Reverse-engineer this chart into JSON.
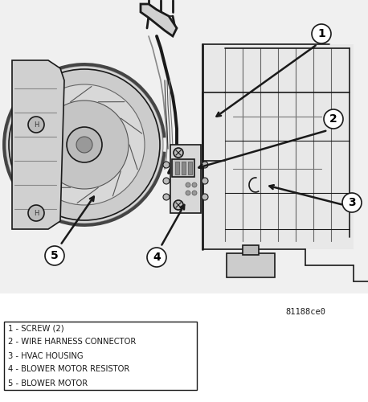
{
  "image_code": "81188ce0",
  "legend_items": [
    "1 - SCREW (2)",
    "2 - WIRE HARNESS CONNECTOR",
    "3 - HVAC HOUSING",
    "4 - BLOWER MOTOR RESISTOR",
    "5 - BLOWER MOTOR"
  ],
  "background_color": "#ffffff",
  "line_color": "#1a1a1a",
  "gray_fill": "#c8c8c8",
  "light_gray": "#e0e0e0",
  "label_font_size": 7.2,
  "code_font_size": 7.5,
  "circle_label_font_size": 10
}
